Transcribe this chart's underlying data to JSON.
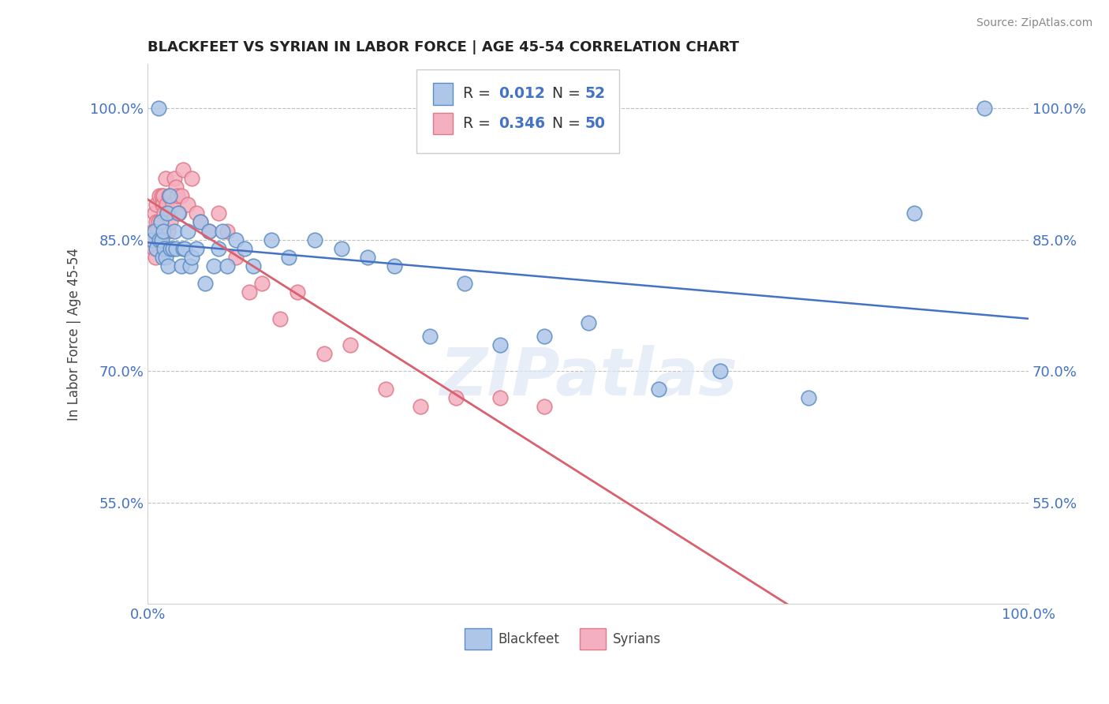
{
  "title": "BLACKFEET VS SYRIAN IN LABOR FORCE | AGE 45-54 CORRELATION CHART",
  "source_text": "Source: ZipAtlas.com",
  "ylabel": "In Labor Force | Age 45-54",
  "xlim": [
    0.0,
    1.0
  ],
  "ylim": [
    0.435,
    1.05
  ],
  "yticks": [
    0.55,
    0.7,
    0.85,
    1.0
  ],
  "ytick_labels": [
    "55.0%",
    "70.0%",
    "85.0%",
    "100.0%"
  ],
  "xticks": [
    0.0,
    1.0
  ],
  "xtick_labels": [
    "0.0%",
    "100.0%"
  ],
  "blue_color": "#aec6e8",
  "pink_color": "#f4afc0",
  "blue_edge_color": "#5b8ec4",
  "pink_edge_color": "#e07888",
  "blue_line_color": "#4472c4",
  "pink_line_color": "#d9606e",
  "legend_r_color": "#4472c4",
  "watermark": "ZIPatlas",
  "blackfeet_x": [
    0.005,
    0.008,
    0.01,
    0.012,
    0.013,
    0.015,
    0.016,
    0.017,
    0.018,
    0.019,
    0.02,
    0.022,
    0.023,
    0.025,
    0.026,
    0.028,
    0.03,
    0.032,
    0.035,
    0.038,
    0.04,
    0.042,
    0.045,
    0.048,
    0.05,
    0.055,
    0.06,
    0.065,
    0.07,
    0.075,
    0.08,
    0.085,
    0.09,
    0.1,
    0.11,
    0.12,
    0.14,
    0.16,
    0.19,
    0.22,
    0.25,
    0.28,
    0.32,
    0.36,
    0.4,
    0.45,
    0.5,
    0.58,
    0.65,
    0.75,
    0.87,
    0.95
  ],
  "blackfeet_y": [
    0.85,
    0.86,
    0.84,
    1.0,
    0.85,
    0.87,
    0.85,
    0.83,
    0.86,
    0.84,
    0.83,
    0.88,
    0.82,
    0.9,
    0.84,
    0.84,
    0.86,
    0.84,
    0.88,
    0.82,
    0.84,
    0.84,
    0.86,
    0.82,
    0.83,
    0.84,
    0.87,
    0.8,
    0.86,
    0.82,
    0.84,
    0.86,
    0.82,
    0.85,
    0.84,
    0.82,
    0.85,
    0.83,
    0.85,
    0.84,
    0.83,
    0.82,
    0.74,
    0.8,
    0.73,
    0.74,
    0.755,
    0.68,
    0.7,
    0.67,
    0.88,
    1.0
  ],
  "syrian_x": [
    0.004,
    0.006,
    0.007,
    0.008,
    0.009,
    0.01,
    0.01,
    0.011,
    0.012,
    0.013,
    0.014,
    0.015,
    0.016,
    0.017,
    0.018,
    0.019,
    0.02,
    0.021,
    0.022,
    0.023,
    0.024,
    0.025,
    0.026,
    0.027,
    0.028,
    0.03,
    0.032,
    0.034,
    0.036,
    0.038,
    0.04,
    0.045,
    0.05,
    0.055,
    0.06,
    0.07,
    0.08,
    0.09,
    0.1,
    0.115,
    0.13,
    0.15,
    0.17,
    0.2,
    0.23,
    0.27,
    0.31,
    0.35,
    0.4,
    0.45
  ],
  "syrian_y": [
    0.85,
    0.86,
    0.84,
    0.88,
    0.83,
    0.89,
    0.87,
    0.86,
    0.87,
    0.9,
    0.85,
    0.87,
    0.9,
    0.89,
    0.9,
    0.88,
    0.92,
    0.89,
    0.88,
    0.86,
    0.9,
    0.88,
    0.87,
    0.9,
    0.89,
    0.92,
    0.91,
    0.9,
    0.88,
    0.9,
    0.93,
    0.89,
    0.92,
    0.88,
    0.87,
    0.86,
    0.88,
    0.86,
    0.83,
    0.79,
    0.8,
    0.76,
    0.79,
    0.72,
    0.73,
    0.68,
    0.66,
    0.67,
    0.67,
    0.66
  ]
}
